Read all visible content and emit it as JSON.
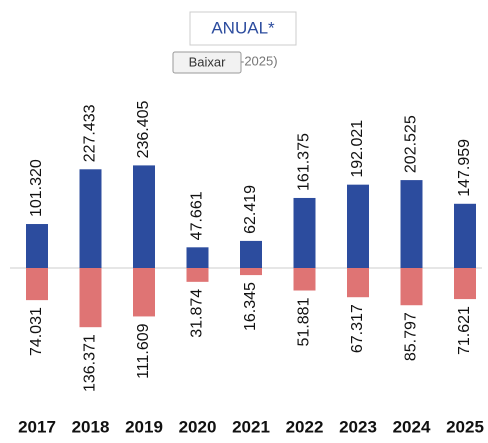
{
  "chart_data": {
    "type": "bar",
    "title": "ANUAL*",
    "subtitle": "-2025)",
    "tooltip": "Baixar",
    "categories": [
      "2017",
      "2018",
      "2019",
      "2020",
      "2021",
      "2022",
      "2023",
      "2024",
      "2025"
    ],
    "series": [
      {
        "color": "#2c4c9e",
        "values": [
          101320,
          227433,
          236405,
          47661,
          62419,
          161375,
          192021,
          202525,
          147959
        ],
        "value_labels": [
          "101.320",
          "227.433",
          "236.405",
          "47.661",
          "62.419",
          "161.375",
          "192.021",
          "202.525",
          "147.959"
        ]
      },
      {
        "color": "#df7474",
        "values": [
          -74031,
          -136371,
          -111609,
          -31874,
          -16345,
          -51881,
          -67317,
          -85797,
          -71621
        ],
        "value_labels": [
          "74.031",
          "136.371",
          "111.609",
          "31.874",
          "16.345",
          "51.881",
          "67.317",
          "85.797",
          "71.621"
        ]
      }
    ]
  }
}
